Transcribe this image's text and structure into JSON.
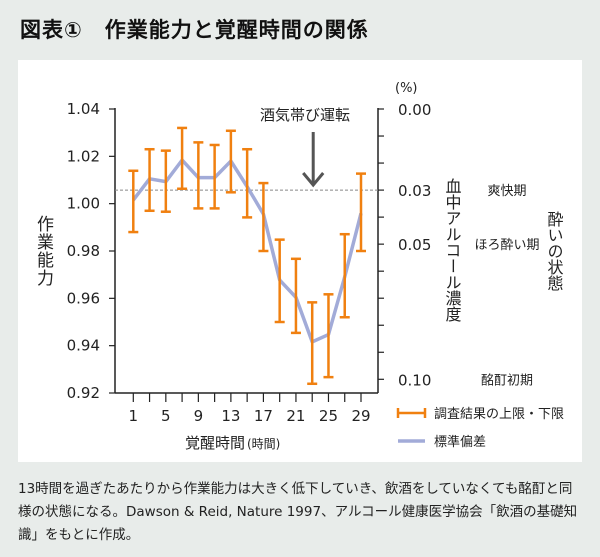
{
  "title": "図表①　作業能力と覚醒時間の関係",
  "caption": "13時間を過ぎたあたりから作業能力は大きく低下していき、飲酒をしていなくても酩酊と同様の状態になる。Dawson & Reid, Nature 1997、アルコール健康医学協会「飲酒の基礎知識」をもとに作成。",
  "chart_data": {
    "type": "line",
    "xlabel": "覚醒時間",
    "xlabel_unit": "(時間)",
    "ylabel": "作業能力",
    "ylim": [
      0.92,
      1.04
    ],
    "yticks": [
      "1.04",
      "1.02",
      "1.00",
      "0.98",
      "0.96",
      "0.94",
      "0.92"
    ],
    "xlim": [
      1,
      29
    ],
    "xtick_labels": [
      "1",
      "5",
      "9",
      "13",
      "17",
      "21",
      "25",
      "29"
    ],
    "x": [
      1,
      3,
      5,
      7,
      9,
      11,
      13,
      15,
      17,
      19,
      21,
      23,
      25,
      27,
      29
    ],
    "series": [
      {
        "name": "標準偏差",
        "color": "#a2abd8",
        "values": [
          1.0015,
          1.0105,
          1.0093,
          1.0184,
          1.011,
          1.011,
          1.018,
          1.0072,
          0.9956,
          0.9677,
          0.9604,
          0.9416,
          0.9447,
          0.9691,
          0.9959
        ]
      },
      {
        "name": "調査結果の上限・下限",
        "color": "#f08010",
        "upper": [
          1.0139,
          1.023,
          1.0224,
          1.032,
          1.0259,
          1.0248,
          1.0308,
          1.023,
          1.0087,
          0.9848,
          0.9767,
          0.9583,
          0.9617,
          0.9871,
          1.0127
        ],
        "lower": [
          0.988,
          0.997,
          0.9966,
          1.0063,
          0.998,
          0.998,
          1.0048,
          0.9942,
          0.98,
          0.95,
          0.9454,
          0.9239,
          0.9267,
          0.952,
          0.98
        ]
      }
    ],
    "right_axis": {
      "label": "血中アルコール濃度",
      "unit": "(%)",
      "range": [
        0.0,
        0.1
      ],
      "tick_labels": [
        {
          "value": 0.0,
          "text": "0.00"
        },
        {
          "value": 0.03,
          "text": "0.03"
        },
        {
          "value": 0.05,
          "text": "0.05"
        },
        {
          "value": 0.1,
          "text": "0.10"
        }
      ],
      "states_label": "酔いの状態",
      "states": [
        {
          "value": 0.03,
          "text": "爽快期"
        },
        {
          "value": 0.05,
          "text": "ほろ酔い期"
        },
        {
          "value": 0.1,
          "text": "酩酊初期"
        }
      ]
    },
    "annotation": {
      "text": "酒気帯び運転",
      "bac": 0.03,
      "x": 23
    },
    "grid": false,
    "legend": "bottom-right"
  }
}
